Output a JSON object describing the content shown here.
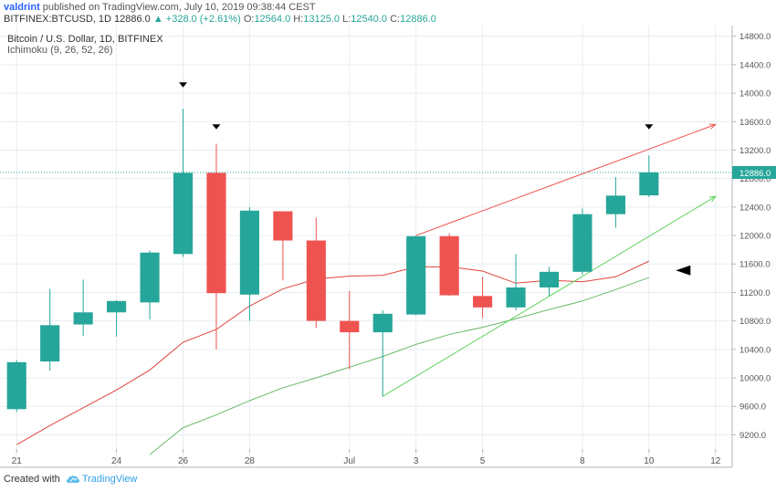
{
  "header": {
    "author": "valdrint",
    "published": "published on TradingView.com, July 10, 2019 09:38:44 CEST",
    "symbol": "BITFINEX:BTCUSD, 1D",
    "last": "12886.0",
    "change": "▲ +328.0 (+2.61%)",
    "o_label": "O:",
    "o_value": "12564.0",
    "h_label": "H:",
    "h_value": "13125.0",
    "l_label": "L:",
    "l_value": "12540.0",
    "c_label": "C:",
    "c_value": "12886.0"
  },
  "footer": {
    "created_with": "Created with",
    "brand": "TradingView"
  },
  "colors": {
    "up": "#26a69a",
    "down": "#ef5350",
    "tenkan": "#e0443e",
    "kijun": "#6ab86a",
    "grid": "#e8edf1",
    "price_line": "#26a69a"
  },
  "chart_data": {
    "type": "candlestick",
    "title": "Bitcoin / U.S. Dollar, 1D, BITFINEX",
    "indicator": "Ichimoku (9, 26, 52, 26)",
    "y_axis": {
      "range": [
        9000,
        14950
      ],
      "ticks": [
        9200,
        9600,
        10000,
        10400,
        10800,
        11200,
        11600,
        12000,
        12400,
        12800,
        13200,
        13600,
        14000,
        14400,
        14800
      ],
      "tick_labels": [
        "9200.0",
        "9600.0",
        "10000.0",
        "10400.0",
        "10800.0",
        "11200.0",
        "11600.0",
        "12000.0",
        "12400.0",
        "12800.0",
        "13200.0",
        "13600.0",
        "14000.0",
        "14400.0",
        "14800.0"
      ]
    },
    "x_axis": {
      "range": [
        -0.5,
        21.5
      ],
      "ticks": [
        {
          "i": 0,
          "label": "21"
        },
        {
          "i": 3,
          "label": "24"
        },
        {
          "i": 5,
          "label": "26"
        },
        {
          "i": 7,
          "label": "28"
        },
        {
          "i": 10,
          "label": "Jul"
        },
        {
          "i": 12,
          "label": "3"
        },
        {
          "i": 14,
          "label": "5"
        },
        {
          "i": 17,
          "label": "8"
        },
        {
          "i": 19,
          "label": "10"
        },
        {
          "i": 21,
          "label": "12"
        }
      ]
    },
    "candles": [
      {
        "i": 0,
        "open": 9560,
        "high": 10250,
        "low": 9520,
        "close": 10220
      },
      {
        "i": 1,
        "open": 10230,
        "high": 11250,
        "low": 10100,
        "close": 10740
      },
      {
        "i": 2,
        "open": 10750,
        "high": 11380,
        "low": 10590,
        "close": 10920
      },
      {
        "i": 3,
        "open": 10920,
        "high": 11090,
        "low": 10580,
        "close": 11080
      },
      {
        "i": 4,
        "open": 11060,
        "high": 11790,
        "low": 10820,
        "close": 11760
      },
      {
        "i": 5,
        "open": 11740,
        "high": 13780,
        "low": 11700,
        "close": 12880
      },
      {
        "i": 6,
        "open": 12880,
        "high": 13290,
        "low": 10400,
        "close": 11190
      },
      {
        "i": 7,
        "open": 11170,
        "high": 12400,
        "low": 10800,
        "close": 12350
      },
      {
        "i": 8,
        "open": 12340,
        "high": 12340,
        "low": 11370,
        "close": 11930
      },
      {
        "i": 9,
        "open": 11930,
        "high": 12250,
        "low": 10700,
        "close": 10800
      },
      {
        "i": 10,
        "open": 10800,
        "high": 11220,
        "low": 10120,
        "close": 10640
      },
      {
        "i": 11,
        "open": 10640,
        "high": 10950,
        "low": 9740,
        "close": 10900
      },
      {
        "i": 12,
        "open": 10890,
        "high": 12000,
        "low": 10880,
        "close": 11990
      },
      {
        "i": 13,
        "open": 11990,
        "high": 12030,
        "low": 11150,
        "close": 11160
      },
      {
        "i": 14,
        "open": 11150,
        "high": 11420,
        "low": 10840,
        "close": 10990
      },
      {
        "i": 15,
        "open": 10990,
        "high": 11740,
        "low": 10950,
        "close": 11270
      },
      {
        "i": 16,
        "open": 11270,
        "high": 11560,
        "low": 11150,
        "close": 11490
      },
      {
        "i": 17,
        "open": 11490,
        "high": 12380,
        "low": 11450,
        "close": 12300
      },
      {
        "i": 18,
        "open": 12300,
        "high": 12820,
        "low": 12110,
        "close": 12560
      },
      {
        "i": 19,
        "open": 12564,
        "high": 13125,
        "low": 12540,
        "close": 12886
      }
    ],
    "tenkan_sen": [
      [
        0,
        9060
      ],
      [
        1,
        9330
      ],
      [
        2,
        9580
      ],
      [
        3,
        9830
      ],
      [
        4,
        10110
      ],
      [
        5,
        10500
      ],
      [
        6,
        10680
      ],
      [
        7,
        11010
      ],
      [
        8,
        11250
      ],
      [
        9,
        11390
      ],
      [
        10,
        11430
      ],
      [
        11,
        11440
      ],
      [
        12,
        11560
      ],
      [
        13,
        11560
      ],
      [
        14,
        11500
      ],
      [
        15,
        11330
      ],
      [
        16,
        11370
      ],
      [
        17,
        11350
      ],
      [
        18,
        11420
      ],
      [
        19,
        11640
      ]
    ],
    "kijun_sen": [
      [
        4,
        8920
      ],
      [
        5,
        9300
      ],
      [
        6,
        9480
      ],
      [
        7,
        9680
      ],
      [
        8,
        9860
      ],
      [
        9,
        10000
      ],
      [
        10,
        10150
      ],
      [
        11,
        10300
      ],
      [
        12,
        10470
      ],
      [
        13,
        10610
      ],
      [
        14,
        10710
      ],
      [
        15,
        10830
      ],
      [
        16,
        10960
      ],
      [
        17,
        11080
      ],
      [
        18,
        11240
      ],
      [
        19,
        11410
      ]
    ],
    "trend_lines": [
      {
        "name": "upper-resistance",
        "color": "#ef5350",
        "from": [
          12,
          12000
        ],
        "to": [
          21,
          13560
        ]
      },
      {
        "name": "lower-support",
        "color": "#5fd35f",
        "from": [
          11,
          9740
        ],
        "to": [
          21,
          12550
        ]
      }
    ],
    "price_line": {
      "value": 12886,
      "label": "12886.0"
    },
    "markers": [
      {
        "i": 5,
        "price": 14120,
        "shape": "down-triangle"
      },
      {
        "i": 6,
        "price": 13530,
        "shape": "down-triangle"
      },
      {
        "i": 19,
        "price": 13530,
        "shape": "down-triangle"
      },
      {
        "i": 20,
        "price": 11510,
        "shape": "left-triangle"
      }
    ]
  }
}
